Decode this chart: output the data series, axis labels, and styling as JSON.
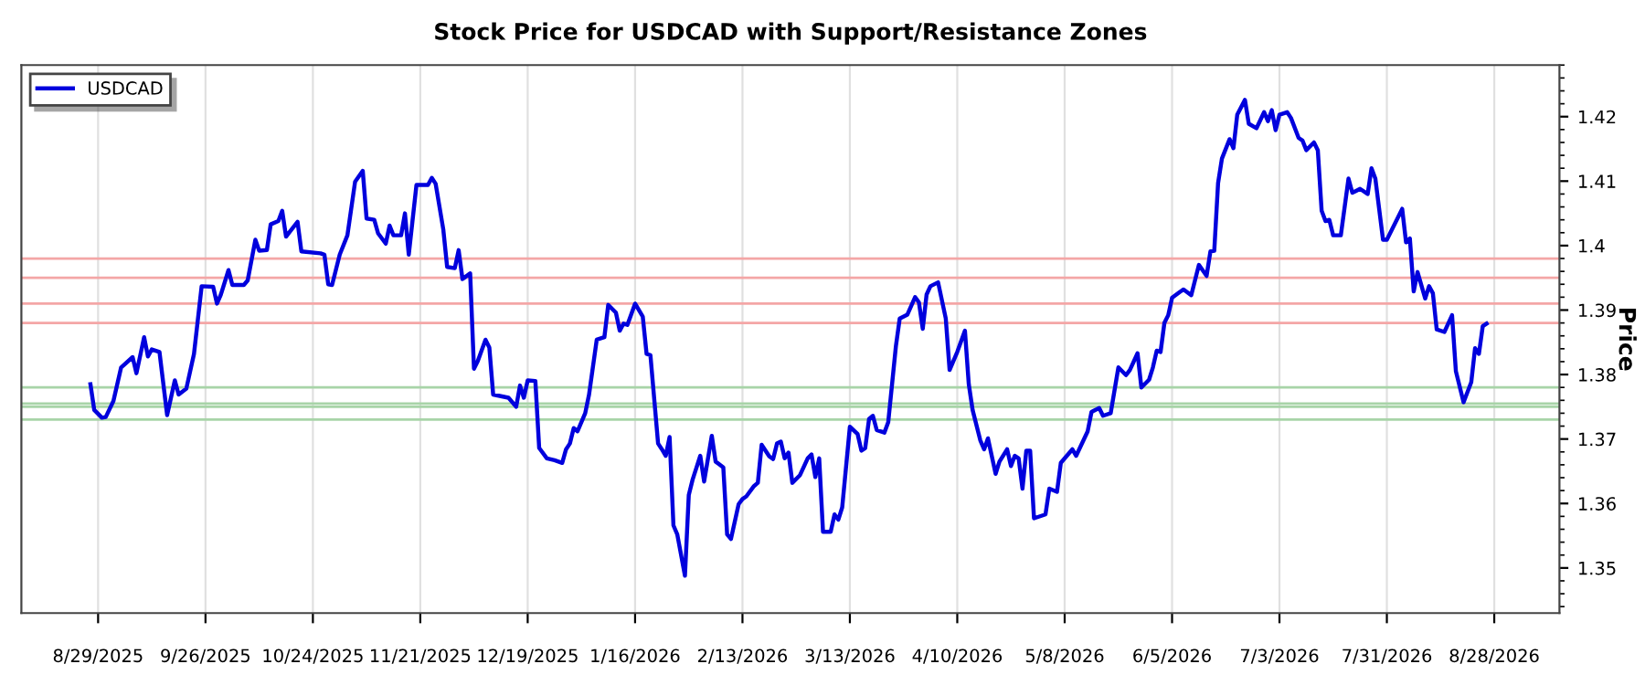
{
  "chart_data": {
    "type": "line",
    "title": "Stock Price for USDCAD with Support/Resistance Zones",
    "ylabel": "Price",
    "x": [
      "2025-08-27",
      "2025-08-28",
      "2025-08-30",
      "2025-08-31",
      "2025-09-02",
      "2025-09-04",
      "2025-09-07",
      "2025-09-08",
      "2025-09-10",
      "2025-09-11",
      "2025-09-12",
      "2025-09-14",
      "2025-09-16",
      "2025-09-18",
      "2025-09-19",
      "2025-09-21",
      "2025-09-23",
      "2025-09-25",
      "2025-09-28",
      "2025-09-29",
      "2025-09-30",
      "2025-10-02",
      "2025-10-03",
      "2025-10-06",
      "2025-10-07",
      "2025-10-09",
      "2025-10-10",
      "2025-10-12",
      "2025-10-13",
      "2025-10-15",
      "2025-10-16",
      "2025-10-17",
      "2025-10-20",
      "2025-10-21",
      "2025-10-26",
      "2025-10-27",
      "2025-10-28",
      "2025-10-29",
      "2025-10-31",
      "2025-11-02",
      "2025-11-04",
      "2025-11-06",
      "2025-11-07",
      "2025-11-09",
      "2025-11-10",
      "2025-11-12",
      "2025-11-13",
      "2025-11-14",
      "2025-11-16",
      "2025-11-17",
      "2025-11-18",
      "2025-11-20",
      "2025-11-23",
      "2025-11-24",
      "2025-11-25",
      "2025-11-27",
      "2025-11-28",
      "2025-11-30",
      "2025-12-01",
      "2025-12-02",
      "2025-12-04",
      "2025-12-05",
      "2025-12-06",
      "2025-12-08",
      "2025-12-09",
      "2025-12-10",
      "2025-12-14",
      "2025-12-16",
      "2025-12-17",
      "2025-12-18",
      "2025-12-19",
      "2025-12-21",
      "2025-12-22",
      "2025-12-24",
      "2025-12-26",
      "2025-12-28",
      "2025-12-29",
      "2025-12-30",
      "2025-12-31",
      "2026-01-01",
      "2026-01-03",
      "2026-01-04",
      "2026-01-06",
      "2026-01-08",
      "2026-01-09",
      "2026-01-11",
      "2026-01-12",
      "2026-01-13",
      "2026-01-14",
      "2026-01-16",
      "2026-01-18",
      "2026-01-19",
      "2026-01-20",
      "2026-01-22",
      "2026-01-23",
      "2026-01-24",
      "2026-01-25",
      "2026-01-26",
      "2026-01-27",
      "2026-01-29",
      "2026-01-30",
      "2026-01-31",
      "2026-02-02",
      "2026-02-03",
      "2026-02-05",
      "2026-02-06",
      "2026-02-08",
      "2026-02-09",
      "2026-02-10",
      "2026-02-12",
      "2026-02-13",
      "2026-02-14",
      "2026-02-16",
      "2026-02-17",
      "2026-02-18",
      "2026-02-20",
      "2026-02-21",
      "2026-02-22",
      "2026-02-23",
      "2026-02-24",
      "2026-02-25",
      "2026-02-26",
      "2026-02-28",
      "2026-03-02",
      "2026-03-03",
      "2026-03-04",
      "2026-03-05",
      "2026-03-06",
      "2026-03-08",
      "2026-03-09",
      "2026-03-10",
      "2026-03-11",
      "2026-03-13",
      "2026-03-15",
      "2026-03-16",
      "2026-03-17",
      "2026-03-18",
      "2026-03-19",
      "2026-03-20",
      "2026-03-22",
      "2026-03-23",
      "2026-03-25",
      "2026-03-26",
      "2026-03-28",
      "2026-03-30",
      "2026-03-31",
      "2026-04-01",
      "2026-04-02",
      "2026-04-03",
      "2026-04-05",
      "2026-04-07",
      "2026-04-08",
      "2026-04-10",
      "2026-04-12",
      "2026-04-13",
      "2026-04-14",
      "2026-04-16",
      "2026-04-17",
      "2026-04-18",
      "2026-04-20",
      "2026-04-21",
      "2026-04-23",
      "2026-04-24",
      "2026-04-25",
      "2026-04-26",
      "2026-04-27",
      "2026-04-28",
      "2026-04-29",
      "2026-04-30",
      "2026-05-03",
      "2026-05-04",
      "2026-05-06",
      "2026-05-07",
      "2026-05-10",
      "2026-05-11",
      "2026-05-14",
      "2026-05-15",
      "2026-05-17",
      "2026-05-18",
      "2026-05-20",
      "2026-05-22",
      "2026-05-24",
      "2026-05-25",
      "2026-05-27",
      "2026-05-28",
      "2026-05-30",
      "2026-05-31",
      "2026-06-01",
      "2026-06-02",
      "2026-06-03",
      "2026-06-04",
      "2026-06-05",
      "2026-06-07",
      "2026-06-08",
      "2026-06-10",
      "2026-06-12",
      "2026-06-14",
      "2026-06-15",
      "2026-06-16",
      "2026-06-17",
      "2026-06-18",
      "2026-06-20",
      "2026-06-21",
      "2026-06-22",
      "2026-06-24",
      "2026-06-25",
      "2026-06-27",
      "2026-06-29",
      "2026-06-30",
      "2026-07-01",
      "2026-07-02",
      "2026-07-03",
      "2026-07-05",
      "2026-07-06",
      "2026-07-08",
      "2026-07-09",
      "2026-07-10",
      "2026-07-12",
      "2026-07-13",
      "2026-07-14",
      "2026-07-15",
      "2026-07-16",
      "2026-07-17",
      "2026-07-19",
      "2026-07-21",
      "2026-07-22",
      "2026-07-23",
      "2026-07-24",
      "2026-07-26",
      "2026-07-27",
      "2026-07-28",
      "2026-07-30",
      "2026-07-31",
      "2026-08-04",
      "2026-08-05",
      "2026-08-06",
      "2026-08-07",
      "2026-08-08",
      "2026-08-10",
      "2026-08-11",
      "2026-08-12",
      "2026-08-13",
      "2026-08-15",
      "2026-08-17",
      "2026-08-18",
      "2026-08-20",
      "2026-08-22",
      "2026-08-23",
      "2026-08-24",
      "2026-08-25",
      "2026-08-26"
    ],
    "series": [
      {
        "name": "USDCAD",
        "color": "#0000dd",
        "values": [
          1.3785,
          1.3745,
          1.3733,
          1.3734,
          1.3759,
          1.3811,
          1.3827,
          1.3802,
          1.3858,
          1.3828,
          1.3839,
          1.3835,
          1.3737,
          1.3791,
          1.3769,
          1.3778,
          1.3832,
          1.3937,
          1.3936,
          1.391,
          1.3924,
          1.3962,
          1.3939,
          1.3939,
          1.3946,
          1.4009,
          1.3992,
          1.3993,
          1.4033,
          1.4038,
          1.4054,
          1.4014,
          1.4037,
          1.3991,
          1.3988,
          1.3986,
          1.394,
          1.3939,
          1.3986,
          1.4016,
          1.4099,
          1.4116,
          1.4042,
          1.404,
          1.4019,
          1.4003,
          1.4031,
          1.4016,
          1.4016,
          1.405,
          1.3986,
          1.4094,
          1.4094,
          1.4105,
          1.4096,
          1.4025,
          1.3967,
          1.3965,
          1.3993,
          1.3948,
          1.3957,
          1.3809,
          1.3821,
          1.3854,
          1.3842,
          1.3769,
          1.3764,
          1.375,
          1.3783,
          1.3764,
          1.3791,
          1.379,
          1.3686,
          1.367,
          1.3667,
          1.3663,
          1.3684,
          1.3693,
          1.3717,
          1.3712,
          1.374,
          1.3769,
          1.3854,
          1.3858,
          1.3908,
          1.3896,
          1.3868,
          1.3879,
          1.3877,
          1.391,
          1.389,
          1.3832,
          1.383,
          1.3693,
          1.3684,
          1.3674,
          1.3703,
          1.3566,
          1.3552,
          1.3488,
          1.3613,
          1.3637,
          1.3674,
          1.3634,
          1.3705,
          1.3665,
          1.3656,
          1.3552,
          1.3545,
          1.3599,
          1.3607,
          1.3611,
          1.3627,
          1.3632,
          1.3691,
          1.3673,
          1.3669,
          1.3693,
          1.3696,
          1.367,
          1.3679,
          1.3632,
          1.3644,
          1.367,
          1.3676,
          1.3641,
          1.367,
          1.3556,
          1.3556,
          1.3583,
          1.3575,
          1.3594,
          1.3719,
          1.3708,
          1.3682,
          1.3686,
          1.3731,
          1.3736,
          1.3714,
          1.371,
          1.3726,
          1.3844,
          1.3887,
          1.3893,
          1.392,
          1.3912,
          1.3871,
          1.3924,
          1.3937,
          1.3943,
          1.3887,
          1.3807,
          1.3835,
          1.3868,
          1.3785,
          1.3745,
          1.3698,
          1.3684,
          1.3701,
          1.3646,
          1.3665,
          1.3684,
          1.3658,
          1.3674,
          1.367,
          1.3623,
          1.3682,
          1.3682,
          1.3577,
          1.3583,
          1.3623,
          1.3618,
          1.3663,
          1.3684,
          1.3674,
          1.3712,
          1.3742,
          1.3748,
          1.3736,
          1.374,
          1.3811,
          1.3799,
          1.3807,
          1.3833,
          1.378,
          1.3792,
          1.3811,
          1.3837,
          1.3835,
          1.388,
          1.3892,
          1.3919,
          1.3928,
          1.3932,
          1.3923,
          1.397,
          1.3953,
          1.3991,
          1.3992,
          1.4097,
          1.4135,
          1.4165,
          1.4151,
          1.4203,
          1.4226,
          1.4189,
          1.4182,
          1.4207,
          1.4193,
          1.421,
          1.4179,
          1.4203,
          1.4207,
          1.4198,
          1.4167,
          1.4163,
          1.4148,
          1.416,
          1.4148,
          1.4054,
          1.4038,
          1.404,
          1.4016,
          1.4016,
          1.4104,
          1.4082,
          1.4085,
          1.4088,
          1.408,
          1.412,
          1.4104,
          1.4009,
          1.4009,
          1.4057,
          1.4005,
          1.4011,
          1.3929,
          1.3959,
          1.3918,
          1.3937,
          1.3926,
          1.387,
          1.3866,
          1.3892,
          1.3805,
          1.3757,
          1.3788,
          1.3841,
          1.3832,
          1.3875,
          1.3879
        ]
      }
    ],
    "xlim": [
      "2025-08-09",
      "2026-09-14"
    ],
    "ylim": [
      1.343,
      1.428
    ],
    "xticks": [
      {
        "value": "2025-08-29",
        "label": "8/29/2025"
      },
      {
        "value": "2025-09-26",
        "label": "9/26/2025"
      },
      {
        "value": "2025-10-24",
        "label": "10/24/2025"
      },
      {
        "value": "2025-11-21",
        "label": "11/21/2025"
      },
      {
        "value": "2025-12-19",
        "label": "12/19/2025"
      },
      {
        "value": "2026-01-16",
        "label": "1/16/2026"
      },
      {
        "value": "2026-02-13",
        "label": "2/13/2026"
      },
      {
        "value": "2026-03-13",
        "label": "3/13/2026"
      },
      {
        "value": "2026-04-10",
        "label": "4/10/2026"
      },
      {
        "value": "2026-05-08",
        "label": "5/8/2026"
      },
      {
        "value": "2026-06-05",
        "label": "6/5/2026"
      },
      {
        "value": "2026-07-03",
        "label": "7/3/2026"
      },
      {
        "value": "2026-07-31",
        "label": "7/31/2026"
      },
      {
        "value": "2026-08-28",
        "label": "8/28/2026"
      }
    ],
    "yticks": [
      1.35,
      1.36,
      1.37,
      1.38,
      1.39,
      1.4,
      1.41,
      1.42
    ],
    "ref_lines": [
      {
        "axis": "y",
        "value": 1.398,
        "color": "#f4a6a6"
      },
      {
        "axis": "y",
        "value": 1.395,
        "color": "#f4a6a6"
      },
      {
        "axis": "y",
        "value": 1.391,
        "color": "#f4a6a6"
      },
      {
        "axis": "y",
        "value": 1.388,
        "color": "#f4a6a6"
      },
      {
        "axis": "y",
        "value": 1.378,
        "color": "#a8d4a8"
      },
      {
        "axis": "y",
        "value": 1.3755,
        "color": "#a8d4a8"
      },
      {
        "axis": "y",
        "value": 1.375,
        "color": "#a8d4a8"
      },
      {
        "axis": "y",
        "value": 1.373,
        "color": "#a8d4a8"
      }
    ],
    "grid": "x",
    "legend": "top left",
    "line_style": "solid",
    "marker": "none"
  }
}
